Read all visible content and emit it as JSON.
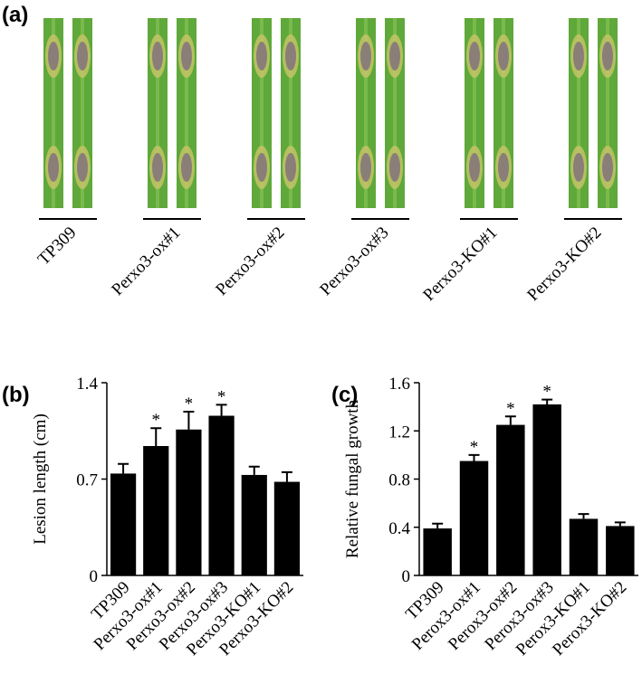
{
  "panel_a": {
    "label": "(a)",
    "samples": [
      "TP309",
      "Perxo3-ox#1",
      "Perxo3-ox#2",
      "Perxo3-ox#3",
      "Perxo3-KO#1",
      "Perxo3-KO#2"
    ]
  },
  "chart_data": [
    {
      "type": "bar",
      "panel_label": "(b)",
      "y_label": "Lesion length (cm)",
      "categories": [
        "TP309",
        "Perxo3-ox#1",
        "Perxo3-ox#2",
        "Perxo3-ox#3",
        "Perxo3-KO#1",
        "Perxo3-KO#2"
      ],
      "values": [
        0.74,
        0.94,
        1.06,
        1.16,
        0.73,
        0.68
      ],
      "errors": [
        0.07,
        0.13,
        0.13,
        0.08,
        0.06,
        0.07
      ],
      "stars": [
        null,
        "*",
        "*",
        "*",
        null,
        null
      ],
      "color": "#000000",
      "ylim": [
        0,
        1.4
      ],
      "yticks": [
        0,
        0.7,
        1.4
      ]
    },
    {
      "type": "bar",
      "panel_label": "(c)",
      "y_label": "Relative fungal growth",
      "categories": [
        "TP309",
        "Perox3-ox#1",
        "Perox3-ox#2",
        "Perox3-ox#3",
        "Perox3-KO#1",
        "Perox3-KO#2"
      ],
      "values": [
        0.39,
        0.95,
        1.25,
        1.42,
        0.47,
        0.41
      ],
      "errors": [
        0.04,
        0.05,
        0.07,
        0.04,
        0.04,
        0.03
      ],
      "stars": [
        null,
        "*",
        "*",
        "*",
        null,
        null
      ],
      "color": "#000000",
      "ylim": [
        0,
        1.6
      ],
      "yticks": [
        0,
        0.4,
        0.8,
        1.2,
        1.6
      ]
    }
  ]
}
